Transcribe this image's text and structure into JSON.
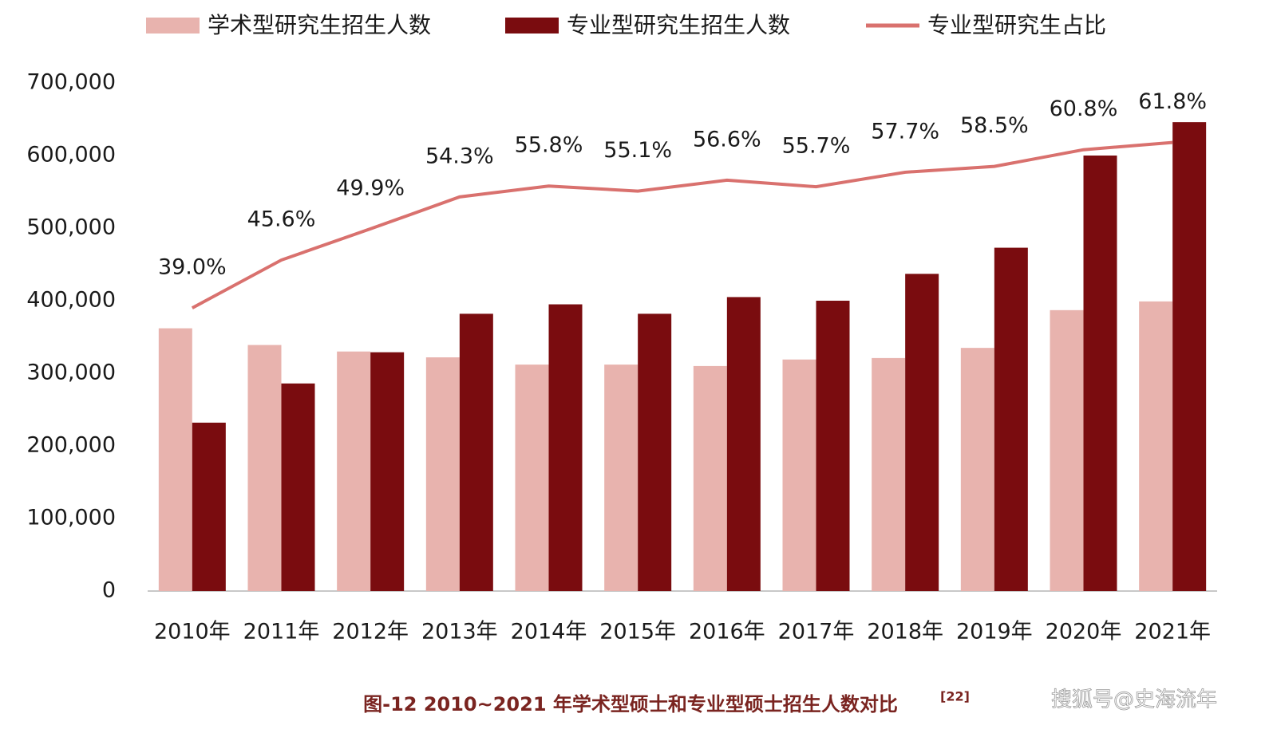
{
  "chart_data": {
    "type": "bar-line",
    "caption": "图-12 2010~2021 年学术型硕士和专业型硕士招生人数对比",
    "caption_ref": "[22]",
    "watermark": "搜狐号@史海流年",
    "categories": [
      "2010年",
      "2011年",
      "2012年",
      "2013年",
      "2014年",
      "2015年",
      "2016年",
      "2017年",
      "2018年",
      "2019年",
      "2020年",
      "2021年"
    ],
    "series": [
      {
        "name": "学术型研究生招生人数",
        "type": "bar",
        "color": "#e8b3ae",
        "values": [
          362000,
          339000,
          330000,
          322000,
          312000,
          312000,
          310000,
          319000,
          321000,
          335000,
          387000,
          399000
        ]
      },
      {
        "name": "专业型研究生招生人数",
        "type": "bar",
        "color": "#7a0c0f",
        "values": [
          232000,
          286000,
          329000,
          382000,
          395000,
          382000,
          405000,
          400000,
          437000,
          473000,
          600000,
          646000
        ]
      },
      {
        "name": "专业型研究生占比",
        "type": "line",
        "axis": "y2",
        "color": "#d9716e",
        "values": [
          39.0,
          45.6,
          49.9,
          54.3,
          55.8,
          55.1,
          56.6,
          55.7,
          57.7,
          58.5,
          60.8,
          61.8
        ],
        "value_labels": [
          "39.0%",
          "45.6%",
          "49.9%",
          "54.3%",
          "55.8%",
          "55.1%",
          "56.6%",
          "55.7%",
          "57.7%",
          "58.5%",
          "60.8%",
          "61.8%"
        ]
      }
    ],
    "ylim": [
      0,
      700000
    ],
    "yticks": [
      0,
      {
        "value": 100000,
        "label": "100,000"
      },
      {
        "value": 200000,
        "label": "200,000"
      },
      {
        "value": 300000,
        "label": "300,000"
      },
      {
        "value": 400000,
        "label": "400,000"
      },
      {
        "value": 500000,
        "label": "500,000"
      },
      {
        "value": 600000,
        "label": "600,000"
      },
      {
        "value": 700000,
        "label": "700,000"
      }
    ],
    "y2lim": [
      0,
      70
    ],
    "grid": false,
    "legend": "top"
  }
}
